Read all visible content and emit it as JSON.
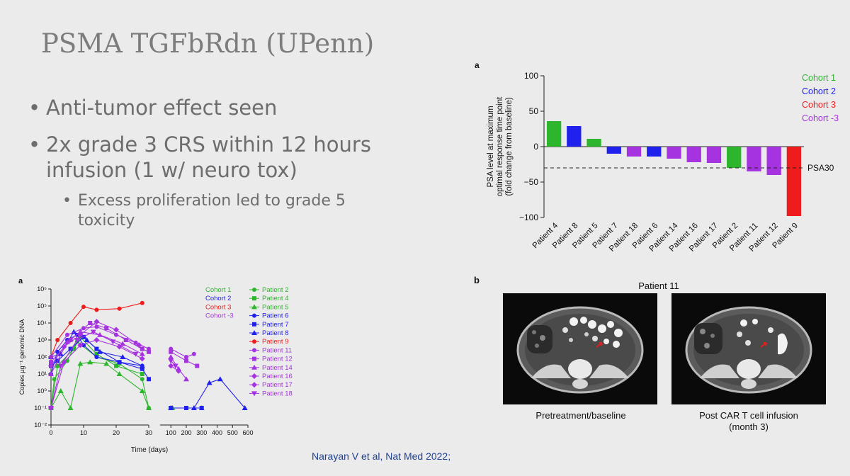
{
  "slide": {
    "title": "PSMA TGFbRdn (UPenn)",
    "bullets": [
      {
        "text": "Anti-tumor effect seen"
      },
      {
        "text_lines": [
          "2x grade 3 CRS within 12 hours",
          "infusion (1 w/ neuro tox)"
        ]
      }
    ],
    "sub_bullets": [
      {
        "text_lines": [
          "Excess proliferation led to grade 5",
          "toxicity"
        ]
      }
    ],
    "citation": "Narayan V et al, Nat Med 2022;",
    "bullet_char": "•"
  },
  "chart_data": [
    {
      "type": "bar",
      "panel_label": "a",
      "ylabel_lines": [
        "PSA level at maximum",
        "optimal response time point",
        "(fold change from baseline)"
      ],
      "ylim": [
        -100,
        100
      ],
      "yticks": [
        100,
        50,
        0,
        -50,
        -100
      ],
      "ytick_labels": [
        "100",
        "50",
        "0",
        "−50",
        "−100"
      ],
      "categories": [
        "Patient 4",
        "Patient 8",
        "Patient 5",
        "Patient 7",
        "Patient 18",
        "Patient 6",
        "Patient 14",
        "Patient 16",
        "Patient 17",
        "Patient 2",
        "Patient 11",
        "Patient 12",
        "Patient 9"
      ],
      "values": [
        36,
        29,
        11,
        -10,
        -14,
        -14,
        -17,
        -22,
        -23,
        -30,
        -35,
        -40,
        -98
      ],
      "bar_cohort": [
        1,
        2,
        1,
        2,
        4,
        2,
        4,
        4,
        4,
        1,
        4,
        4,
        3
      ],
      "reference_line": {
        "value": -30,
        "label": "PSA30"
      },
      "legend": [
        {
          "label": "Cohort  1",
          "color": "#2db52d"
        },
        {
          "label": "Cohort  2",
          "color": "#2121ee"
        },
        {
          "label": "Cohort  3",
          "color": "#ee1c1c"
        },
        {
          "label": "Cohort -3",
          "color": "#a633e0"
        }
      ]
    },
    {
      "type": "line",
      "panel_label": "a",
      "xlabel": "Time (days)",
      "ylabel": "Copies µg⁻¹ genomic DNA",
      "yscale": "log",
      "ylim": [
        0.01,
        1000000
      ],
      "ytick_labels": [
        "10⁶",
        "10⁵",
        "10⁴",
        "10³",
        "10²",
        "10¹",
        "10⁰",
        "10⁻¹",
        "10⁻²"
      ],
      "xtick_labels_left": [
        "0",
        "10",
        "20",
        "30"
      ],
      "xtick_labels_right": [
        "100",
        "200",
        "300",
        "400",
        "500",
        "600"
      ],
      "cohort_legend": [
        {
          "label": "Cohort  1",
          "color": "#2db52d"
        },
        {
          "label": "Cohort  2",
          "color": "#2121ee"
        },
        {
          "label": "Cohort  3",
          "color": "#ee1c1c"
        },
        {
          "label": "Cohort -3",
          "color": "#a633e0"
        }
      ],
      "series": [
        {
          "name": "Patient 2",
          "color": "#2db52d",
          "marker": "circle",
          "points": [
            [
              0,
              0.1
            ],
            [
              1,
              5
            ],
            [
              5,
              60
            ],
            [
              8,
              800
            ],
            [
              14,
              100
            ],
            [
              21,
              40
            ],
            [
              28,
              5
            ],
            [
              30,
              0.1
            ],
            [
              100,
              0.1
            ],
            [
              200,
              0.1
            ]
          ]
        },
        {
          "name": "Patient 4",
          "color": "#2db52d",
          "marker": "square",
          "points": [
            [
              0,
              0.1
            ],
            [
              2,
              30
            ],
            [
              7,
              300
            ],
            [
              9,
              1500
            ],
            [
              14,
              150
            ],
            [
              20,
              30
            ],
            [
              28,
              10
            ],
            [
              100,
              0.1
            ],
            [
              200,
              0.1
            ]
          ]
        },
        {
          "name": "Patient 5",
          "color": "#2db52d",
          "marker": "triangle",
          "points": [
            [
              0,
              0.1
            ],
            [
              3,
              1
            ],
            [
              6,
              0.1
            ],
            [
              9,
              40
            ],
            [
              12,
              50
            ],
            [
              17,
              40
            ],
            [
              21,
              10
            ],
            [
              28,
              1
            ],
            [
              30,
              0.1
            ],
            [
              110,
              0.1
            ],
            [
              300,
              0.1
            ]
          ]
        },
        {
          "name": "Patient 6",
          "color": "#2121ee",
          "marker": "circle",
          "points": [
            [
              0,
              10
            ],
            [
              2,
              200
            ],
            [
              5,
              1000
            ],
            [
              8,
              2000
            ],
            [
              10,
              500
            ],
            [
              14,
              100
            ],
            [
              21,
              50
            ],
            [
              28,
              30
            ]
          ]
        },
        {
          "name": "Patient 7",
          "color": "#2121ee",
          "marker": "square",
          "points": [
            [
              0,
              30
            ],
            [
              2,
              60
            ],
            [
              6,
              300
            ],
            [
              10,
              1500
            ],
            [
              14,
              300
            ],
            [
              21,
              50
            ],
            [
              28,
              20
            ],
            [
              30,
              5
            ],
            [
              100,
              0.1
            ],
            [
              200,
              0.1
            ],
            [
              300,
              0.1
            ]
          ]
        },
        {
          "name": "Patient 8",
          "color": "#2121ee",
          "marker": "triangle",
          "points": [
            [
              0,
              100
            ],
            [
              3,
              150
            ],
            [
              7,
              3000
            ],
            [
              11,
              1000
            ],
            [
              15,
              200
            ],
            [
              22,
              100
            ],
            [
              28,
              30
            ],
            [
              100,
              0.1
            ],
            [
              250,
              0.1
            ],
            [
              350,
              3
            ],
            [
              420,
              5
            ],
            [
              580,
              0.1
            ]
          ]
        },
        {
          "name": "Patient 9",
          "color": "#ee1c1c",
          "marker": "circle",
          "points": [
            [
              0,
              100
            ],
            [
              2,
              1000
            ],
            [
              6,
              10000
            ],
            [
              10,
              90000
            ],
            [
              14,
              60000
            ],
            [
              21,
              70000
            ],
            [
              28,
              150000
            ]
          ]
        },
        {
          "name": "Patient 11",
          "color": "#a633e0",
          "marker": "circle",
          "points": [
            [
              0,
              100
            ],
            [
              5,
              2000
            ],
            [
              10,
              5000
            ],
            [
              14,
              6000
            ],
            [
              20,
              2000
            ],
            [
              26,
              700
            ],
            [
              30,
              300
            ],
            [
              100,
              300
            ],
            [
              200,
              100
            ],
            [
              250,
              150
            ]
          ]
        },
        {
          "name": "Patient 12",
          "color": "#a633e0",
          "marker": "square",
          "points": [
            [
              0,
              50
            ],
            [
              6,
              1000
            ],
            [
              12,
              10000
            ],
            [
              17,
              5000
            ],
            [
              23,
              1000
            ],
            [
              28,
              300
            ],
            [
              30,
              200
            ],
            [
              100,
              200
            ],
            [
              200,
              60
            ],
            [
              270,
              30
            ]
          ]
        },
        {
          "name": "Patient 14",
          "color": "#a633e0",
          "marker": "triangle",
          "points": [
            [
              0,
              10
            ],
            [
              5,
              800
            ],
            [
              9,
              3000
            ],
            [
              15,
              2000
            ],
            [
              22,
              600
            ],
            [
              28,
              150
            ],
            [
              100,
              100
            ],
            [
              150,
              20
            ],
            [
              200,
              5
            ]
          ]
        },
        {
          "name": "Patient 16",
          "color": "#a633e0",
          "marker": "diamond",
          "points": [
            [
              0,
              30
            ],
            [
              4,
              400
            ],
            [
              9,
              2000
            ],
            [
              14,
              12000
            ],
            [
              20,
              4000
            ],
            [
              27,
              500
            ]
          ]
        },
        {
          "name": "Patient 17",
          "color": "#a633e0",
          "marker": "diamond",
          "points": [
            [
              0,
              0.1
            ],
            [
              4,
              50
            ],
            [
              9,
              500
            ],
            [
              14,
              1000
            ],
            [
              21,
              400
            ],
            [
              28,
              80
            ],
            [
              100,
              30
            ],
            [
              150,
              15
            ]
          ]
        },
        {
          "name": "Patient 18",
          "color": "#a633e0",
          "marker": "tri-down",
          "points": [
            [
              0,
              0.1
            ],
            [
              3,
              30
            ],
            [
              8,
              1000
            ],
            [
              13,
              3000
            ],
            [
              19,
              800
            ],
            [
              26,
              150
            ],
            [
              100,
              60
            ],
            [
              130,
              30
            ]
          ]
        }
      ]
    }
  ],
  "ct_panel": {
    "panel_label": "b",
    "title": "Patient 11",
    "captions": [
      {
        "lines": [
          "Pretreatment/baseline"
        ]
      },
      {
        "lines": [
          "Post CAR T cell infusion",
          "(month 3)"
        ]
      }
    ]
  }
}
